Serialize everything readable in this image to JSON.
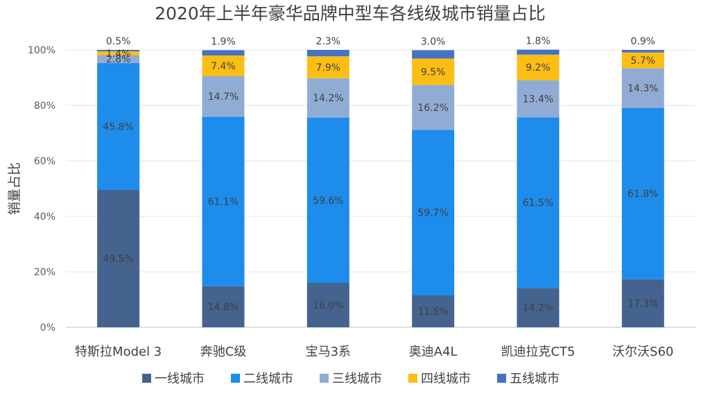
{
  "chart_data": {
    "type": "bar",
    "stacked": true,
    "title": "2020年上半年豪华品牌中型车各线级城市销量占比",
    "xlabel": "",
    "ylabel": "销量占比",
    "ylim": [
      0,
      100
    ],
    "yticks": [
      0,
      20,
      40,
      60,
      80,
      100
    ],
    "ytick_labels": [
      "0%",
      "20%",
      "40%",
      "60%",
      "80%",
      "100%"
    ],
    "grid": true,
    "legend_position": "bottom",
    "categories": [
      "特斯拉Model 3",
      "奔驰C级",
      "宝马3系",
      "奥迪A4L",
      "凯迪拉克CT5",
      "沃尔沃S60"
    ],
    "series": [
      {
        "name": "一线城市",
        "color": "#44638f",
        "values": [
          49.5,
          14.8,
          16.0,
          11.5,
          14.2,
          17.3
        ]
      },
      {
        "name": "二线城市",
        "color": "#1e8ceb",
        "values": [
          45.8,
          61.1,
          59.6,
          59.7,
          61.5,
          61.8
        ]
      },
      {
        "name": "三线城市",
        "color": "#91acd4",
        "values": [
          2.8,
          14.7,
          14.2,
          16.2,
          13.4,
          14.3
        ]
      },
      {
        "name": "四线城市",
        "color": "#fdbe14",
        "values": [
          1.4,
          7.4,
          7.9,
          9.5,
          9.2,
          5.7
        ]
      },
      {
        "name": "五线城市",
        "color": "#4472c4",
        "values": [
          0.5,
          1.9,
          2.3,
          3.0,
          1.8,
          0.9
        ]
      }
    ]
  }
}
